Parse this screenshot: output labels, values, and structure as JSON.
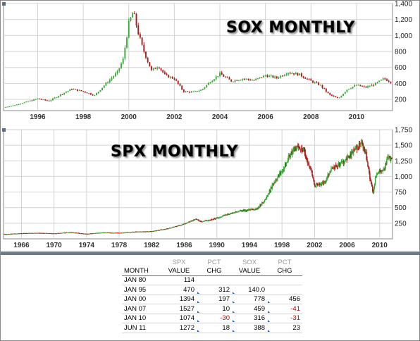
{
  "panels": [
    {
      "id": "sox",
      "title": "SOX MONTHLY",
      "chart_data": {
        "type": "candlestick",
        "title": "SOX MONTHLY",
        "x_start_year": 1994.5,
        "x_end_year": 2011.58,
        "xticks": [
          "1996",
          "1998",
          "2000",
          "2002",
          "2004",
          "2006",
          "2008",
          "2010"
        ],
        "yticks": [
          "200",
          "400",
          "600",
          "800",
          "1,000",
          "1,200",
          "1,400"
        ],
        "ylim": [
          60,
          1400
        ],
        "x": [
          1994.5,
          1995.0,
          1995.5,
          1996.0,
          1996.5,
          1997.0,
          1997.5,
          1998.0,
          1998.5,
          1999.0,
          1999.5,
          1999.75,
          2000.0,
          2000.2,
          2000.4,
          2000.6,
          2000.8,
          2001.0,
          2001.3,
          2001.6,
          2002.0,
          2002.4,
          2002.8,
          2003.2,
          2003.6,
          2004.0,
          2004.5,
          2005.0,
          2005.5,
          2006.0,
          2006.5,
          2007.0,
          2007.5,
          2008.0,
          2008.4,
          2008.8,
          2009.2,
          2009.6,
          2010.0,
          2010.4,
          2010.8,
          2011.2,
          2011.5
        ],
        "values": [
          100,
          130,
          170,
          210,
          180,
          260,
          330,
          300,
          250,
          400,
          540,
          700,
          1150,
          1300,
          1050,
          850,
          700,
          560,
          620,
          500,
          460,
          300,
          290,
          320,
          430,
          520,
          430,
          460,
          440,
          500,
          470,
          540,
          510,
          430,
          380,
          260,
          210,
          330,
          380,
          350,
          390,
          460,
          420
        ],
        "grid": true
      }
    },
    {
      "id": "spx",
      "title": "SPX MONTHLY",
      "chart_data": {
        "type": "candlestick",
        "title": "SPX MONTHLY",
        "x_start_year": 1963.8,
        "x_end_year": 2011.58,
        "xticks": [
          "1966",
          "1970",
          "1974",
          "1978",
          "1982",
          "1986",
          "1990",
          "1994",
          "1998",
          "2002",
          "2006",
          "2010"
        ],
        "yticks": [
          "250",
          "500",
          "750",
          "1,000",
          "1,250",
          "1,500",
          "1,750"
        ],
        "ylim": [
          0,
          1750
        ],
        "x": [
          1963.8,
          1966,
          1968,
          1970,
          1972,
          1974,
          1976,
          1978,
          1980,
          1982,
          1984,
          1986,
          1987.5,
          1988,
          1990,
          1991,
          1993,
          1994,
          1995,
          1996,
          1997,
          1998,
          1999,
          2000,
          2000.7,
          2001,
          2001.5,
          2002,
          2002.8,
          2003.2,
          2004,
          2005,
          2006,
          2007,
          2007.8,
          2008.3,
          2008.9,
          2009.2,
          2009.6,
          2010,
          2010.5,
          2011,
          2011.5
        ],
        "values": [
          75,
          88,
          95,
          85,
          105,
          80,
          100,
          95,
          114,
          120,
          165,
          240,
          320,
          270,
          330,
          380,
          450,
          460,
          480,
          640,
          900,
          1100,
          1350,
          1480,
          1420,
          1250,
          1150,
          850,
          880,
          900,
          1120,
          1180,
          1280,
          1440,
          1527,
          1350,
          900,
          750,
          1050,
          1074,
          1100,
          1300,
          1272
        ],
        "grid": true
      }
    }
  ],
  "table": {
    "group_header": [
      "",
      "SPX",
      "PCT",
      "SOX",
      "PCT"
    ],
    "header": [
      "MONTH",
      "VALUE",
      "CHG",
      "VALUE",
      "CHG"
    ],
    "rows": [
      {
        "month": "JAN 80",
        "spx": "114",
        "spx_chg": "",
        "sox": "",
        "sox_chg": ""
      },
      {
        "month": "JAN 95",
        "spx": "470",
        "spx_chg": "312",
        "sox": "140.0",
        "sox_chg": ""
      },
      {
        "month": "JAN 00",
        "spx": "1394",
        "spx_chg": "197",
        "sox": "778",
        "sox_chg": "456"
      },
      {
        "month": "JAN 07",
        "spx": "1527",
        "spx_chg": "10",
        "sox": "459",
        "sox_chg": "-41"
      },
      {
        "month": "JAN 10",
        "spx": "1074",
        "spx_chg": "-30",
        "sox": "316",
        "sox_chg": "-31"
      },
      {
        "month": "JUN 11",
        "spx": "1272",
        "spx_chg": "18",
        "sox": "388",
        "sox_chg": "23"
      }
    ]
  },
  "colors": {
    "up": "#3aa83a",
    "down": "#b01818",
    "grid": "#d2d2d2",
    "axis": "#888888",
    "negative": "#c00000"
  }
}
